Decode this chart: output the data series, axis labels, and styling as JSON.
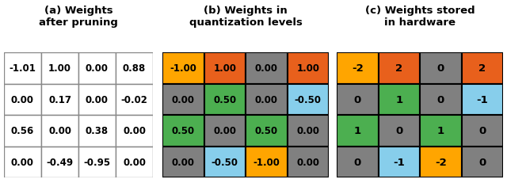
{
  "title_a": "(a) Weights\nafter pruning",
  "title_b": "(b) Weights in\nquantization levels",
  "title_c": "(c) Weights stored\nin hardware",
  "table_a": [
    [
      "-1.01",
      "1.00",
      "0.00",
      "0.88"
    ],
    [
      "0.00",
      "0.17",
      "0.00",
      "-0.02"
    ],
    [
      "0.56",
      "0.00",
      "0.38",
      "0.00"
    ],
    [
      "0.00",
      "-0.49",
      "-0.95",
      "0.00"
    ]
  ],
  "table_b": [
    [
      "-1.00",
      "1.00",
      "0.00",
      "1.00"
    ],
    [
      "0.00",
      "0.50",
      "0.00",
      "-0.50"
    ],
    [
      "0.50",
      "0.00",
      "0.50",
      "0.00"
    ],
    [
      "0.00",
      "-0.50",
      "-1.00",
      "0.00"
    ]
  ],
  "table_c": [
    [
      "-2",
      "2",
      "0",
      "2"
    ],
    [
      "0",
      "1",
      "0",
      "-1"
    ],
    [
      "1",
      "0",
      "1",
      "0"
    ],
    [
      "0",
      "-1",
      "-2",
      "0"
    ]
  ],
  "colors_b": [
    [
      "#FFA500",
      "#E8601C",
      "#808080",
      "#E8601C"
    ],
    [
      "#808080",
      "#4CAF50",
      "#808080",
      "#87CEEB"
    ],
    [
      "#4CAF50",
      "#808080",
      "#4CAF50",
      "#808080"
    ],
    [
      "#808080",
      "#87CEEB",
      "#FFA500",
      "#808080"
    ]
  ],
  "colors_c": [
    [
      "#FFA500",
      "#E8601C",
      "#808080",
      "#E8601C"
    ],
    [
      "#808080",
      "#4CAF50",
      "#808080",
      "#87CEEB"
    ],
    [
      "#4CAF50",
      "#808080",
      "#4CAF50",
      "#808080"
    ],
    [
      "#808080",
      "#87CEEB",
      "#FFA500",
      "#808080"
    ]
  ],
  "bg_color": "#ffffff",
  "border_color_a": "#888888",
  "border_color_bc": "#000000",
  "title_fontsize": 9.5,
  "cell_fontsize_a": 8.5,
  "cell_fontsize_b": 8.5,
  "cell_fontsize_c": 9.5
}
